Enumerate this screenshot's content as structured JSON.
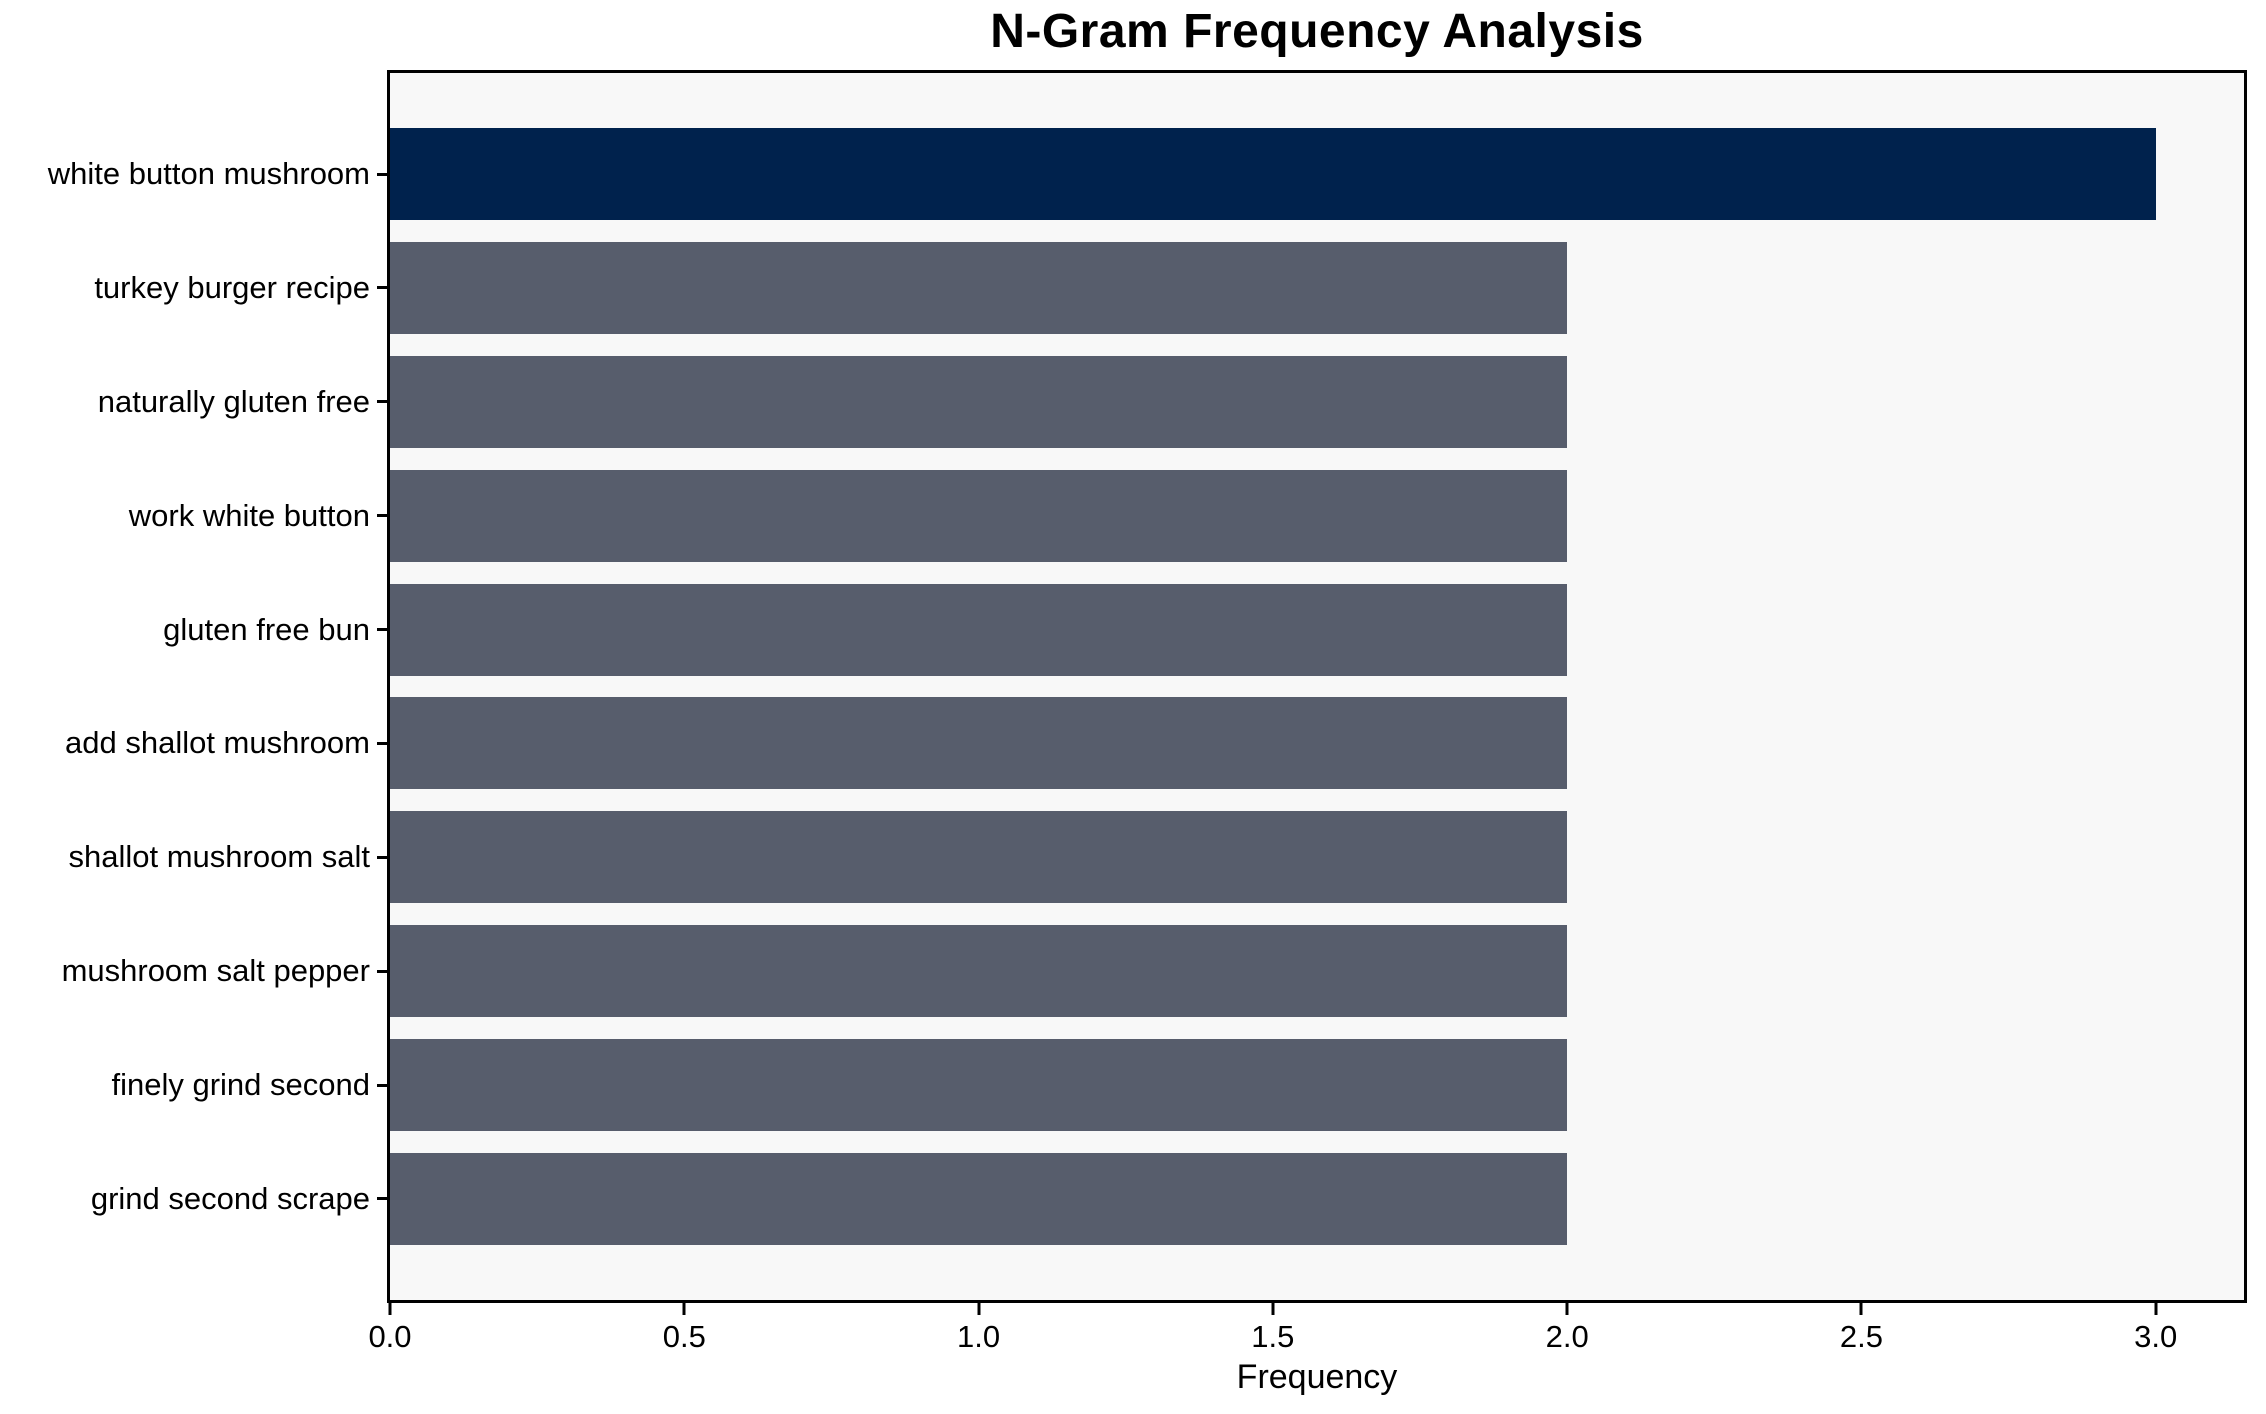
{
  "figure": {
    "background": "#FFFFFF",
    "plot_background": "#F8F8F8",
    "spine_color": "#000000",
    "text_color": "#000000"
  },
  "chart_data": {
    "type": "bar",
    "orientation": "horizontal",
    "title": "N-Gram Frequency Analysis",
    "xlabel": "Frequency",
    "ylabel": "",
    "categories": [
      "white button mushroom",
      "turkey burger recipe",
      "naturally gluten free",
      "work white button",
      "gluten free bun",
      "add shallot mushroom",
      "shallot mushroom salt",
      "mushroom salt pepper",
      "finely grind second",
      "grind second scrape"
    ],
    "values": [
      3,
      2,
      2,
      2,
      2,
      2,
      2,
      2,
      2,
      2
    ],
    "bar_colors": [
      "#00224D",
      "#575D6C",
      "#575D6C",
      "#575D6C",
      "#575D6C",
      "#575D6C",
      "#575D6C",
      "#575D6C",
      "#575D6C",
      "#575D6C"
    ],
    "highlight_color": "#00224D",
    "default_bar_color": "#575D6C",
    "xlim": [
      0,
      3.15
    ],
    "x_ticks": [
      0.0,
      0.5,
      1.0,
      1.5,
      2.0,
      2.5,
      3.0
    ],
    "x_tick_labels": [
      "0.0",
      "0.5",
      "1.0",
      "1.5",
      "2.0",
      "2.5",
      "3.0"
    ],
    "grid": false,
    "legend": null
  }
}
